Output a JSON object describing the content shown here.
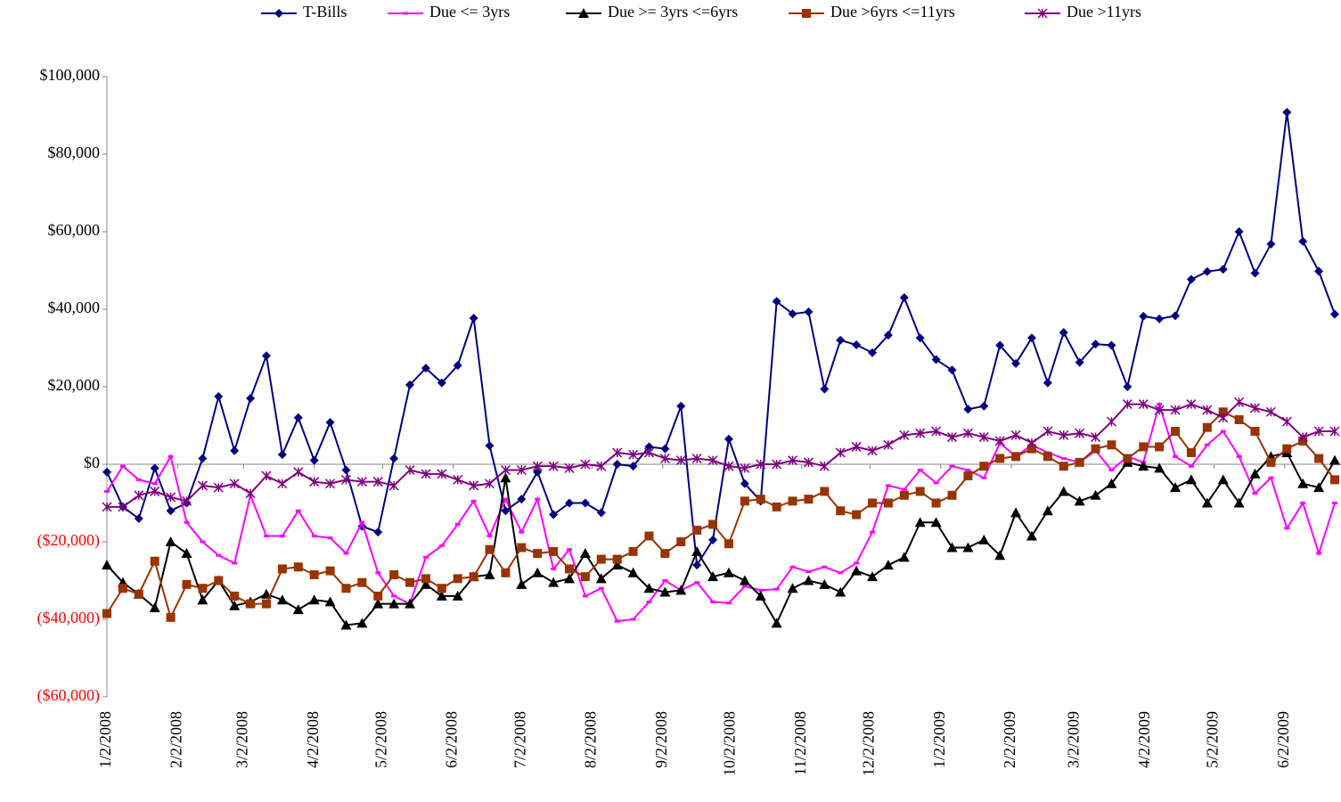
{
  "chart_data": {
    "type": "line",
    "x": [
      "1/2/2008",
      "1/9/2008",
      "1/16/2008",
      "1/23/2008",
      "1/30/2008",
      "2/6/2008",
      "2/13/2008",
      "2/20/2008",
      "2/27/2008",
      "3/5/2008",
      "3/12/2008",
      "3/19/2008",
      "3/26/2008",
      "4/2/2008",
      "4/9/2008",
      "4/16/2008",
      "4/23/2008",
      "4/30/2008",
      "5/7/2008",
      "5/14/2008",
      "5/21/2008",
      "5/28/2008",
      "6/4/2008",
      "6/11/2008",
      "6/18/2008",
      "6/25/2008",
      "7/2/2008",
      "7/9/2008",
      "7/16/2008",
      "7/23/2008",
      "7/30/2008",
      "8/6/2008",
      "8/13/2008",
      "8/20/2008",
      "8/27/2008",
      "9/3/2008",
      "9/10/2008",
      "9/17/2008",
      "9/24/2008",
      "10/1/2008",
      "10/8/2008",
      "10/15/2008",
      "10/22/2008",
      "10/29/2008",
      "11/5/2008",
      "11/12/2008",
      "11/19/2008",
      "11/26/2008",
      "12/3/2008",
      "12/10/2008",
      "12/17/2008",
      "12/24/2008",
      "12/31/2008",
      "1/7/2009",
      "1/14/2009",
      "1/21/2009",
      "1/28/2009",
      "2/4/2009",
      "2/11/2009",
      "2/18/2009",
      "2/25/2009",
      "3/4/2009",
      "3/11/2009",
      "3/18/2009",
      "3/25/2009",
      "4/1/2009",
      "4/8/2009",
      "4/15/2009",
      "4/22/2009",
      "4/29/2009",
      "5/6/2009",
      "5/13/2009",
      "5/20/2009",
      "5/27/2009",
      "6/3/2009",
      "6/10/2009",
      "6/17/2009",
      "6/24/2009"
    ],
    "xlim": [
      "1/2/2008",
      "6/24/2009"
    ],
    "xticks": [
      "1/2/2008",
      "2/2/2008",
      "3/2/2008",
      "4/2/2008",
      "5/2/2008",
      "6/2/2008",
      "7/2/2008",
      "8/2/2008",
      "9/2/2008",
      "10/2/2008",
      "11/2/2008",
      "12/2/2008",
      "1/2/2009",
      "2/2/2009",
      "3/2/2009",
      "4/2/2009",
      "5/2/2009",
      "6/2/2009"
    ],
    "ylim": [
      -60000,
      100000
    ],
    "yticks": [
      {
        "value": -60000,
        "label": "($60,000)"
      },
      {
        "value": -40000,
        "label": "($40,000)"
      },
      {
        "value": -20000,
        "label": "($20,000)"
      },
      {
        "value": 0,
        "label": "$0"
      },
      {
        "value": 20000,
        "label": "$20,000"
      },
      {
        "value": 40000,
        "label": "$40,000"
      },
      {
        "value": 60000,
        "label": "$60,000"
      },
      {
        "value": 80000,
        "label": "$80,000"
      },
      {
        "value": 100000,
        "label": "$100,000"
      }
    ],
    "negative_tick_color": "#ff0000",
    "legend": "top",
    "series": [
      {
        "name": "T-Bills",
        "color": "#000080",
        "marker": "diamond",
        "values": [
          -2000,
          -11000,
          -14000,
          -1000,
          -12000,
          -10000,
          1500,
          17500,
          3500,
          17000,
          28000,
          2500,
          12000,
          1000,
          10800,
          -1500,
          -16000,
          -17500,
          1500,
          20500,
          24800,
          21000,
          25500,
          37700,
          4800,
          -12000,
          -9000,
          -2000,
          -13000,
          -10000,
          -10000,
          -12500,
          0,
          -500,
          4500,
          4000,
          15000,
          -26000,
          -19500,
          6500,
          -5000,
          -9500,
          42000,
          38800,
          39300,
          19400,
          32000,
          30800,
          28800,
          33300,
          43000,
          32600,
          27000,
          24300,
          14200,
          15000,
          30700,
          26000,
          32600,
          21000,
          34000,
          26300,
          31000,
          30700,
          20000,
          38200,
          37500,
          38300,
          47700,
          49700,
          50300,
          60000,
          49300,
          56800,
          90800,
          57500,
          49800,
          38700
        ]
      },
      {
        "name": "Due <= 3yrs",
        "color": "#ff00ff",
        "marker": "dash",
        "values": [
          -7000,
          -500,
          -4000,
          -5000,
          2000,
          -15000,
          -20000,
          -23500,
          -25500,
          -8000,
          -18500,
          -18500,
          -12000,
          -18500,
          -19000,
          -23000,
          -15000,
          -28000,
          -34000,
          -36000,
          -24000,
          -21000,
          -15500,
          -9500,
          -18500,
          -9000,
          -17500,
          -9000,
          -27000,
          -22000,
          -34000,
          -32000,
          -40500,
          -40000,
          -35500,
          -30000,
          -32500,
          -30500,
          -35500,
          -35800,
          -31500,
          -32500,
          -32200,
          -26500,
          -27700,
          -26500,
          -28000,
          -25500,
          -17500,
          -5500,
          -6500,
          -1500,
          -4800,
          -500,
          -1500,
          -3500,
          5500,
          2000,
          5000,
          3000,
          1500,
          500,
          3500,
          -1500,
          2000,
          500,
          15500,
          2000,
          -500,
          5000,
          8500,
          2000,
          -7500,
          -3500,
          -16500,
          -10000,
          -23000,
          -10000
        ]
      },
      {
        "name": "Due >= 3yrs <=6yrs",
        "color": "#000000",
        "marker": "triangle",
        "values": [
          -26000,
          -30500,
          -33500,
          -37000,
          -20000,
          -23000,
          -35000,
          -30000,
          -36500,
          -35500,
          -33500,
          -35000,
          -37500,
          -35000,
          -35500,
          -41500,
          -41000,
          -36000,
          -36000,
          -36000,
          -31000,
          -34000,
          -34000,
          -29000,
          -28500,
          -3500,
          -31000,
          -28000,
          -30500,
          -29500,
          -23000,
          -29500,
          -26000,
          -28000,
          -32000,
          -33000,
          -32500,
          -22500,
          -29000,
          -28000,
          -30000,
          -34000,
          -41000,
          -32000,
          -30000,
          -31000,
          -33000,
          -27500,
          -29000,
          -26000,
          -24000,
          -15000,
          -15000,
          -21500,
          -21500,
          -19500,
          -23500,
          -12500,
          -18500,
          -12000,
          -7000,
          -9500,
          -8000,
          -5000,
          500,
          -500,
          -1000,
          -6000,
          -4000,
          -10000,
          -4000,
          -10000,
          -2500,
          2000,
          3000,
          -5000,
          -6000,
          1000
        ]
      },
      {
        "name": "Due >6yrs <=11yrs",
        "color": "#993300",
        "marker": "square",
        "values": [
          -38500,
          -32000,
          -33500,
          -25000,
          -39500,
          -31000,
          -32000,
          -30000,
          -34000,
          -36000,
          -36000,
          -27000,
          -26500,
          -28500,
          -27500,
          -32000,
          -30500,
          -34000,
          -28500,
          -30500,
          -29500,
          -32000,
          -29500,
          -29000,
          -22000,
          -28000,
          -21500,
          -23000,
          -22500,
          -27000,
          -29000,
          -24500,
          -24500,
          -22500,
          -18500,
          -23000,
          -20000,
          -17000,
          -15500,
          -20500,
          -9500,
          -9000,
          -11000,
          -9500,
          -9000,
          -7000,
          -12000,
          -13000,
          -10000,
          -10000,
          -8000,
          -7000,
          -10000,
          -8000,
          -3000,
          -500,
          1500,
          2000,
          4000,
          2000,
          -500,
          500,
          4000,
          5000,
          1500,
          4500,
          4500,
          8500,
          3000,
          9500,
          13500,
          11500,
          8500,
          500,
          4000,
          6000,
          1500,
          -4000
        ]
      },
      {
        "name": "Due >11yrs",
        "color": "#800080",
        "marker": "star",
        "values": [
          -11000,
          -11000,
          -8000,
          -7000,
          -8500,
          -9500,
          -5500,
          -6000,
          -5000,
          -7500,
          -3000,
          -5000,
          -2000,
          -4500,
          -5000,
          -4000,
          -4500,
          -4500,
          -5500,
          -1500,
          -2500,
          -2500,
          -4000,
          -5500,
          -5000,
          -1500,
          -1500,
          -500,
          -500,
          -1000,
          0,
          -500,
          3000,
          2500,
          3000,
          1500,
          1000,
          1500,
          1000,
          -500,
          -1000,
          0,
          0,
          1000,
          500,
          -500,
          3000,
          4500,
          3500,
          5000,
          7500,
          8000,
          8500,
          7000,
          8000,
          7000,
          6000,
          7500,
          5500,
          8500,
          7500,
          8000,
          7000,
          11000,
          15500,
          15500,
          14000,
          14000,
          15500,
          14000,
          12000,
          16000,
          14500,
          13500,
          11000,
          7000,
          8500,
          8500
        ]
      }
    ]
  }
}
